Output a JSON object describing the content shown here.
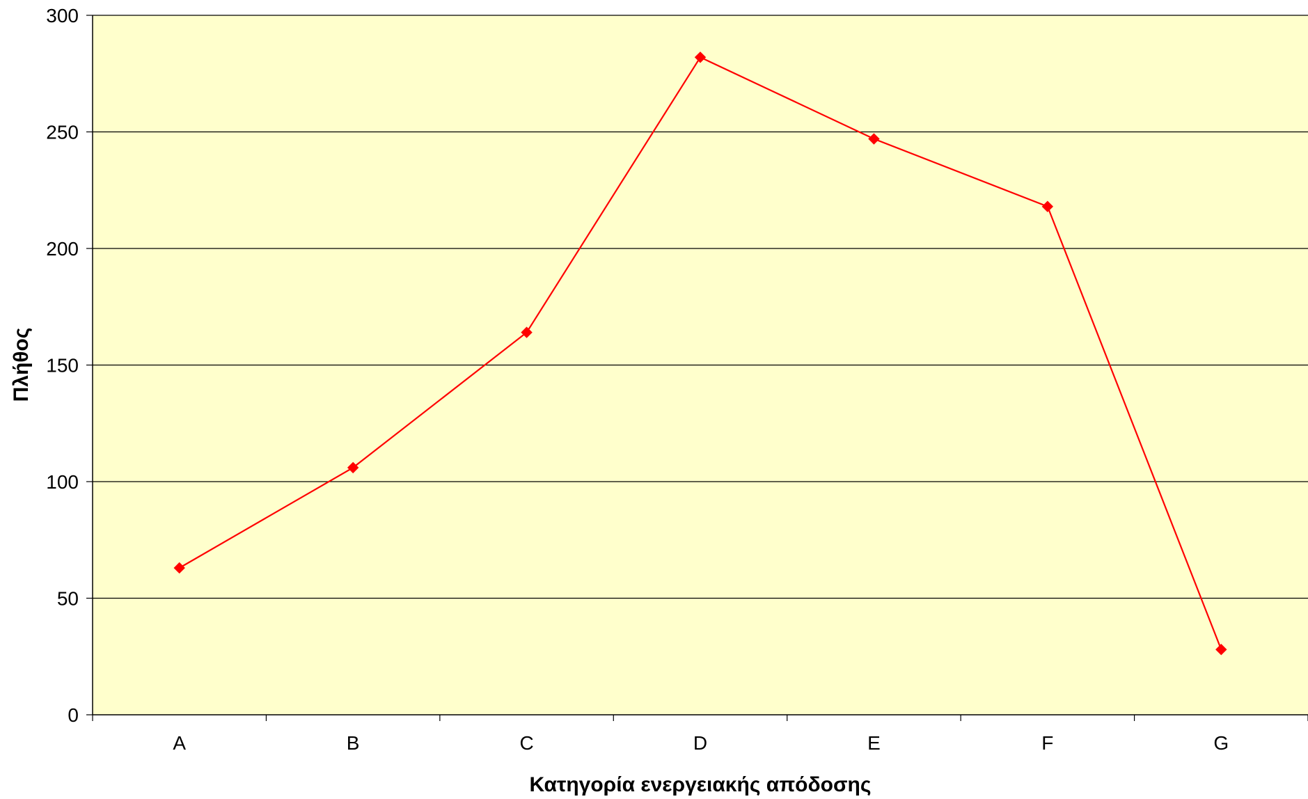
{
  "chart_data": {
    "type": "line",
    "title": "",
    "xlabel": "Κατηγορία ενεργειακής απόδοσης",
    "ylabel": "Πλήθος",
    "categories": [
      "A",
      "B",
      "C",
      "D",
      "E",
      "F",
      "G"
    ],
    "series": [
      {
        "values": [
          63,
          106,
          164,
          282,
          247,
          218,
          28
        ]
      }
    ],
    "ylim": [
      0,
      300
    ],
    "yticks": [
      0,
      50,
      100,
      150,
      200,
      250,
      300
    ],
    "grid": true,
    "legend": "none",
    "colors": {
      "plot_background": "#ffffcc",
      "line": "#ff0000",
      "marker": "#ff0000",
      "gridline": "#000000"
    },
    "marker": "diamond"
  }
}
